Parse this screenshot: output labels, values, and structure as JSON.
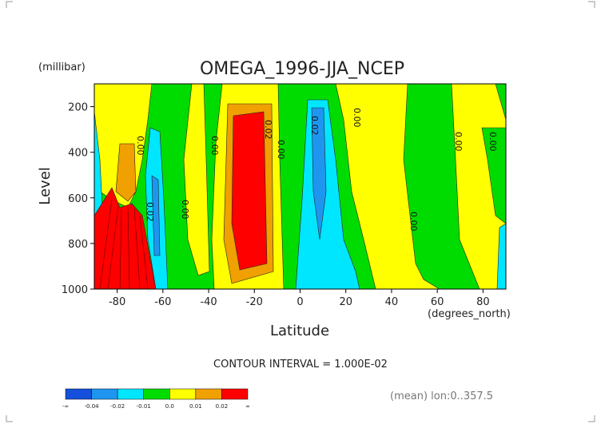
{
  "chart_data": {
    "type": "contour",
    "title": "OMEGA_1996-JJA_NCEP",
    "y_unit": "(millibar)",
    "ylabel": "Level",
    "xlabel": "Latitude",
    "x_unit": "(degrees_north)",
    "xlim": [
      -90,
      90
    ],
    "xticks": [
      -80,
      -60,
      -40,
      -20,
      0,
      20,
      40,
      60,
      80
    ],
    "ylim": [
      1000,
      100
    ],
    "yticks": [
      200,
      400,
      600,
      800,
      1000
    ],
    "contour_labels": [
      "0.00",
      "0.02",
      "0.00",
      "0.00",
      "0.02",
      "0.00",
      "0.02",
      "0.00",
      "0.00",
      "0.00",
      "0.00"
    ],
    "contour_interval": "CONTOUR INTERVAL = 1.000E-02",
    "colorbar": {
      "colors": [
        "#1450dc",
        "#1e96f0",
        "#00e6ff",
        "#00dc00",
        "#ffff00",
        "#f0a000",
        "#ff0000"
      ],
      "labels": [
        "-∞",
        "-0.04",
        "-0.02",
        "-0.01",
        "0.0",
        "0.01",
        "0.02",
        "∞"
      ]
    },
    "footnote": "(mean) lon:0..357.5"
  }
}
